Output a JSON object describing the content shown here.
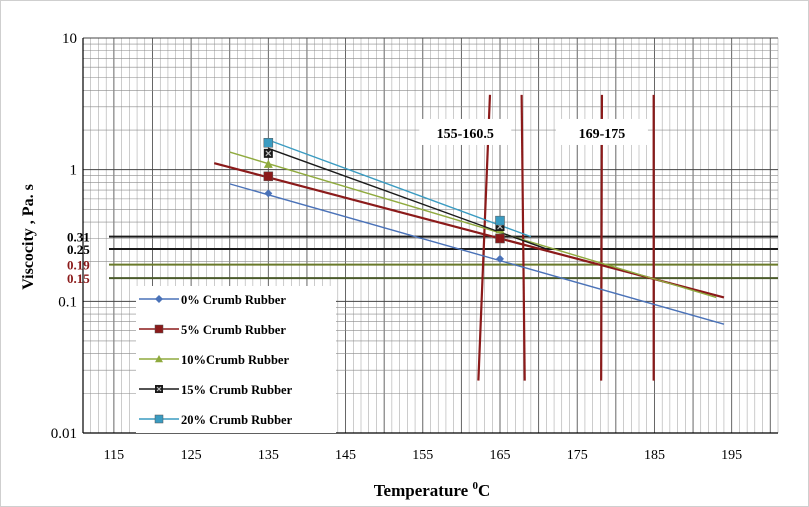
{
  "chart_data": {
    "type": "line",
    "title": "",
    "xlabel": "Temperature",
    "xlabel_sup": "0",
    "xlabel_unit": "C",
    "ylabel": "Viscocity , Pa. s",
    "xlim": [
      111,
      201
    ],
    "ylim": [
      0.01,
      10
    ],
    "yscale": "log",
    "grid": true,
    "x_ticks": [
      115,
      125,
      135,
      145,
      155,
      165,
      175,
      185,
      195
    ],
    "y_ticks": [
      {
        "value": 10,
        "label": "10"
      },
      {
        "value": 1,
        "label": "1"
      },
      {
        "value": 0.1,
        "label": "0.1"
      },
      {
        "value": 0.01,
        "label": "0.01"
      }
    ],
    "legend_position": "bottom-left",
    "series": [
      {
        "name": "0% Crumb Rubber",
        "color": "#4a72b8",
        "marker": "diamond",
        "points": [
          [
            135,
            0.66
          ],
          [
            165,
            0.21
          ]
        ],
        "trend": [
          [
            130,
            0.78
          ],
          [
            194,
            0.067
          ]
        ]
      },
      {
        "name": "5% Crumb Rubber",
        "color": "#8b1a1a",
        "marker": "square",
        "points": [
          [
            135,
            0.89
          ],
          [
            165,
            0.3
          ]
        ],
        "trend": [
          [
            128,
            1.12
          ],
          [
            194,
            0.107
          ]
        ]
      },
      {
        "name": "10%Crumb Rubber",
        "color": "#8faa3e",
        "marker": "triangle",
        "points": [
          [
            135,
            1.1
          ],
          [
            165,
            0.35
          ]
        ],
        "trend": [
          [
            130,
            1.36
          ],
          [
            193,
            0.107
          ]
        ]
      },
      {
        "name": "15% Crumb Rubber",
        "color": "#1a1a1a",
        "marker": "square-x",
        "points": [
          [
            135,
            1.33
          ],
          [
            165,
            0.37
          ]
        ],
        "trend": [
          [
            135,
            1.45
          ],
          [
            171,
            0.25
          ]
        ]
      },
      {
        "name": "20% Crumb Rubber",
        "color": "#3a9bc1",
        "marker": "square",
        "points": [
          [
            135,
            1.6
          ],
          [
            165,
            0.41
          ]
        ],
        "trend": [
          [
            135,
            1.68
          ],
          [
            169,
            0.31
          ]
        ]
      }
    ],
    "horizontal_lines": [
      {
        "value": 0.31,
        "label": "0.31",
        "color": "#1a1a1a",
        "label_color": "#000000"
      },
      {
        "value": 0.25,
        "label": "0.25",
        "color": "#1a1a1a",
        "label_color": "#000000"
      },
      {
        "value": 0.19,
        "label": "0.19",
        "color": "#6a7a2a",
        "label_color": "#8b1a1a"
      },
      {
        "value": 0.15,
        "label": "0.15",
        "color": "#4a5a2a",
        "label_color": "#8b1a1a"
      }
    ],
    "vertical_lines": [
      {
        "color": "#8b1a1a",
        "from": [
          162.2,
          0.025
        ],
        "to": [
          163.7,
          3.7
        ]
      },
      {
        "color": "#8b1a1a",
        "from": [
          168.2,
          0.025
        ],
        "to": [
          167.8,
          3.7
        ]
      },
      {
        "color": "#8b1a1a",
        "from": [
          178.1,
          0.025
        ],
        "to": [
          178.2,
          3.7
        ]
      },
      {
        "color": "#8b1a1a",
        "from": [
          184.9,
          0.025
        ],
        "to": [
          184.9,
          3.7
        ]
      }
    ],
    "annotations": [
      {
        "text": "155-160.5",
        "at": [
          160.5,
          1.9
        ]
      },
      {
        "text": "169-175",
        "at": [
          178.2,
          1.9
        ]
      }
    ]
  }
}
